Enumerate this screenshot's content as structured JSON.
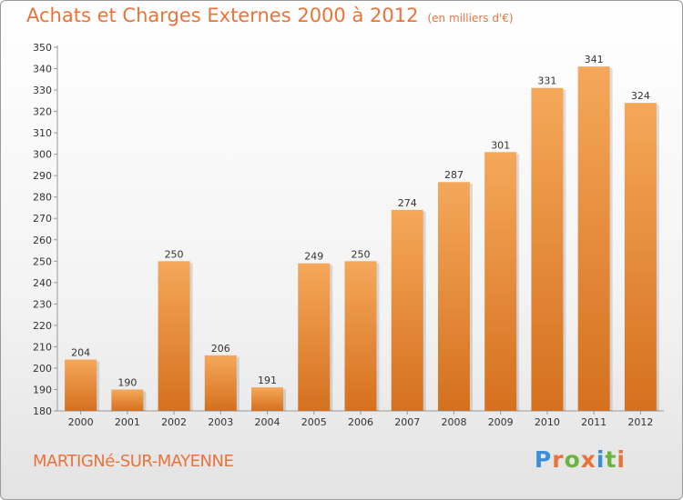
{
  "header": {
    "title": "Achats et Charges Externes 2000 à 2012",
    "subtitle": "(en milliers d'€)"
  },
  "footer": {
    "commune": "MARTIGNé-SUR-MAYENNE",
    "logo_text": "Proxiti",
    "logo_colors": [
      "#3a8fd9",
      "#e8743b",
      "#6cb33f",
      "#e8743b",
      "#3a8fd9",
      "#6cb33f",
      "#e8743b"
    ]
  },
  "colors": {
    "bar_top": "#f5a85a",
    "bar_bottom": "#d5701e",
    "accent": "#e8743b"
  },
  "chart_data": {
    "type": "bar",
    "title": "Achats et Charges Externes 2000 à 2012",
    "subtitle": "(en milliers d'€)",
    "categories": [
      "2000",
      "2001",
      "2002",
      "2003",
      "2004",
      "2005",
      "2006",
      "2007",
      "2008",
      "2009",
      "2010",
      "2011",
      "2012"
    ],
    "values": [
      204,
      190,
      250,
      206,
      191,
      249,
      250,
      274,
      287,
      301,
      331,
      341,
      324
    ],
    "ylim": [
      180,
      350
    ],
    "yticks": [
      180,
      190,
      200,
      210,
      220,
      230,
      240,
      250,
      260,
      270,
      280,
      290,
      300,
      310,
      320,
      330,
      340,
      350
    ],
    "grid": false,
    "xlabel": "",
    "ylabel": ""
  }
}
